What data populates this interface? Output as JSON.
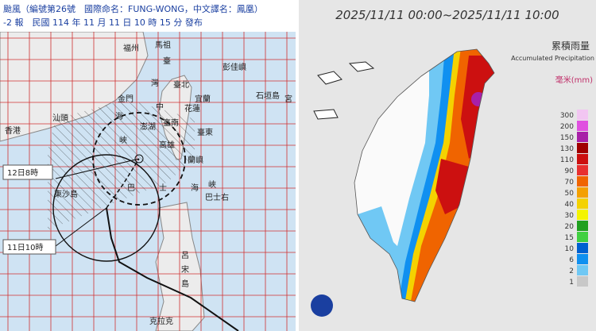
{
  "left_map": {
    "header": {
      "line1": "颱風（編號第26號　國際命名：FUNG-WONG，中文譯名：鳳凰）",
      "line2": "-2 報　民國 114 年 11 月 11 日 10 時 15 分 發布"
    },
    "labels": [
      "福州",
      "馬祖",
      "臺",
      "彭佳嶼",
      "灣",
      "臺北",
      "宜蘭",
      "金門",
      "中",
      "花蓮",
      "石垣島",
      "宮",
      "汕頭",
      "海",
      "澎湖",
      "臺南",
      "臺東",
      "香港",
      "峽",
      "高雄",
      "蘭嶼",
      "東沙島",
      "巴",
      "士",
      "海",
      "峽",
      "巴士右",
      "呂",
      "宋",
      "島",
      "克拉克"
    ],
    "time_labels": [
      "12日8時",
      "11日10時"
    ]
  },
  "right_map": {
    "title": "2025/11/11 00:00~2025/11/11 10:00",
    "legend": {
      "title": "累積雨量",
      "subtitle": "Accumulated Precipitation",
      "unit": "毫米(mm)",
      "levels": [
        300,
        200,
        150,
        130,
        110,
        90,
        70,
        50,
        40,
        30,
        20,
        15,
        10,
        6,
        2,
        1
      ],
      "colors": [
        "#f2c6f2",
        "#e050e0",
        "#a820a8",
        "#a00000",
        "#cc1010",
        "#e83030",
        "#f06400",
        "#f4a000",
        "#f4d200",
        "#f4f400",
        "#20a020",
        "#40d040",
        "#0060d0",
        "#1090f0",
        "#70c8f4",
        "#c8c8c8"
      ]
    }
  }
}
